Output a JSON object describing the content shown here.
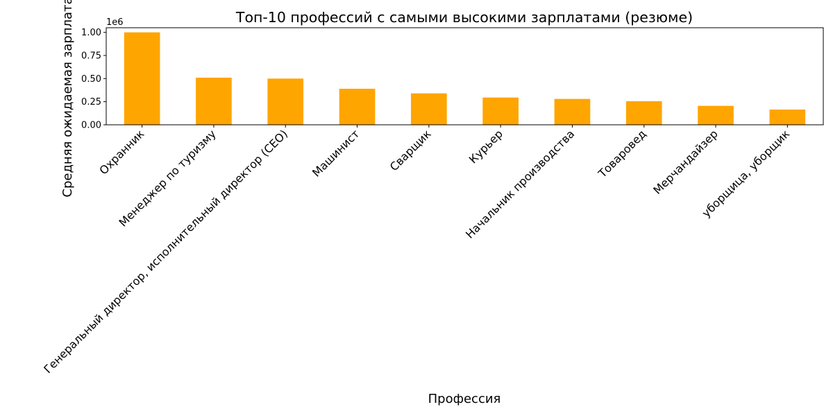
{
  "chart_data": {
    "type": "bar",
    "title": "Топ-10 профессий с самыми высокими зарплатами (резюме)",
    "xlabel": "Профессия",
    "ylabel": "Средняя ожидаемая зарплата",
    "y_offset_label": "1e6",
    "ylim": [
      0,
      1.05
    ],
    "yticks": [
      0.0,
      0.25,
      0.5,
      0.75,
      1.0
    ],
    "ytick_labels": [
      "0.00",
      "0.25",
      "0.50",
      "0.75",
      "1.00"
    ],
    "categories": [
      "Охранник",
      "Менеджер по туризму",
      "Генеральный директор, исполнительный директор (CEO)",
      "Машинист",
      "Сварщик",
      "Курьер",
      "Начальник производства",
      "Товаровед",
      "Мерчандайзер",
      "уборщица, уборщик"
    ],
    "values": [
      1.0,
      0.51,
      0.5,
      0.39,
      0.34,
      0.295,
      0.28,
      0.255,
      0.205,
      0.165
    ],
    "bar_color": "#ffa500",
    "grid": false,
    "legend": "none"
  }
}
